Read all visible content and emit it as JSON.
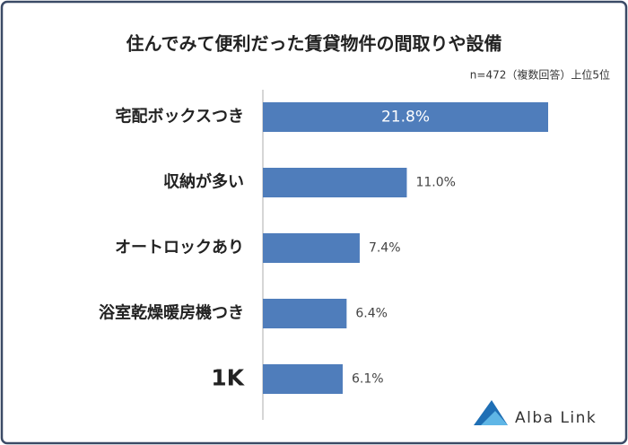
{
  "chart_data": {
    "type": "bar",
    "orientation": "horizontal",
    "title": "住んでみて便利だった賃貸物件の間取りや設備",
    "subtitle": "n=472（複数回答）上位5位",
    "categories": [
      "宅配ボックスつき",
      "収納が多い",
      "オートロックあり",
      "浴室乾燥暖房機つき",
      "1K"
    ],
    "values": [
      21.8,
      11.0,
      7.4,
      6.4,
      6.1
    ],
    "value_labels": [
      "21.8%",
      "11.0%",
      "7.4%",
      "6.4%",
      "6.1%"
    ],
    "color": "#4f7dbb"
  },
  "logo": "Alba Link"
}
